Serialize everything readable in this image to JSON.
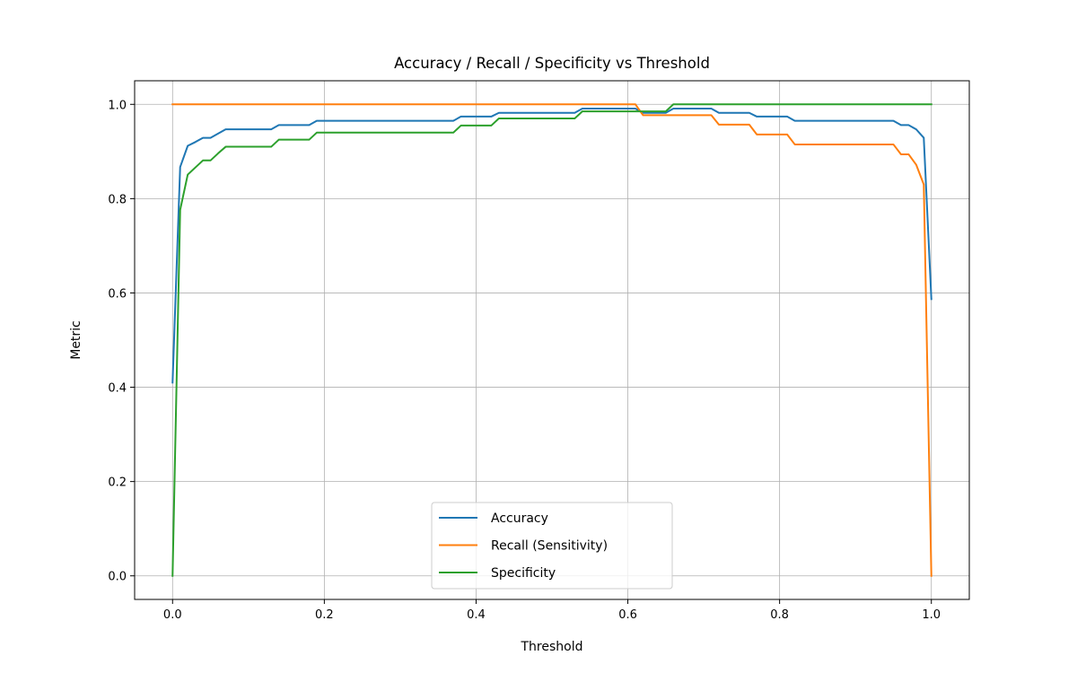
{
  "chart_data": {
    "type": "line",
    "title": "Accuracy / Recall / Specificity vs Threshold",
    "xlabel": "Threshold",
    "ylabel": "Metric",
    "xlim": [
      -0.05,
      1.05
    ],
    "ylim": [
      -0.05,
      1.05
    ],
    "xticks": [
      0.0,
      0.2,
      0.4,
      0.6,
      0.8,
      1.0
    ],
    "xtick_labels": [
      "0.0",
      "0.2",
      "0.4",
      "0.6",
      "0.8",
      "1.0"
    ],
    "yticks": [
      0.0,
      0.2,
      0.4,
      0.6,
      0.8,
      1.0
    ],
    "ytick_labels": [
      "0.0",
      "0.2",
      "0.4",
      "0.6",
      "0.8",
      "1.0"
    ],
    "grid": true,
    "legend_position": "lower center",
    "series": [
      {
        "name": "Accuracy",
        "color": "#1f77b4",
        "x": [
          0.0,
          0.01,
          0.02,
          0.03,
          0.04,
          0.05,
          0.06,
          0.07,
          0.13,
          0.14,
          0.18,
          0.19,
          0.37,
          0.38,
          0.42,
          0.43,
          0.53,
          0.54,
          0.61,
          0.62,
          0.65,
          0.66,
          0.71,
          0.72,
          0.76,
          0.77,
          0.81,
          0.82,
          0.95,
          0.96,
          0.97,
          0.98,
          0.99,
          1.0
        ],
        "y": [
          0.41,
          0.867,
          0.912,
          0.92,
          0.929,
          0.929,
          0.938,
          0.947,
          0.947,
          0.956,
          0.956,
          0.965,
          0.965,
          0.974,
          0.974,
          0.982,
          0.982,
          0.991,
          0.991,
          0.982,
          0.982,
          0.991,
          0.991,
          0.982,
          0.982,
          0.974,
          0.974,
          0.965,
          0.965,
          0.956,
          0.956,
          0.947,
          0.929,
          0.587
        ]
      },
      {
        "name": "Recall (Sensitivity)",
        "color": "#ff7f0e",
        "x": [
          0.0,
          0.61,
          0.62,
          0.71,
          0.72,
          0.76,
          0.77,
          0.81,
          0.82,
          0.95,
          0.96,
          0.97,
          0.98,
          0.99,
          1.0
        ],
        "y": [
          1.0,
          1.0,
          0.977,
          0.977,
          0.957,
          0.957,
          0.936,
          0.936,
          0.915,
          0.915,
          0.894,
          0.894,
          0.872,
          0.83,
          0.0
        ]
      },
      {
        "name": "Specificity",
        "color": "#2ca02c",
        "x": [
          0.0,
          0.01,
          0.02,
          0.03,
          0.04,
          0.05,
          0.06,
          0.07,
          0.13,
          0.14,
          0.18,
          0.19,
          0.37,
          0.38,
          0.42,
          0.43,
          0.53,
          0.54,
          0.65,
          0.66,
          1.0
        ],
        "y": [
          0.0,
          0.776,
          0.851,
          0.866,
          0.881,
          0.881,
          0.896,
          0.91,
          0.91,
          0.925,
          0.925,
          0.94,
          0.94,
          0.955,
          0.955,
          0.97,
          0.97,
          0.985,
          0.985,
          1.0,
          1.0
        ]
      }
    ]
  }
}
